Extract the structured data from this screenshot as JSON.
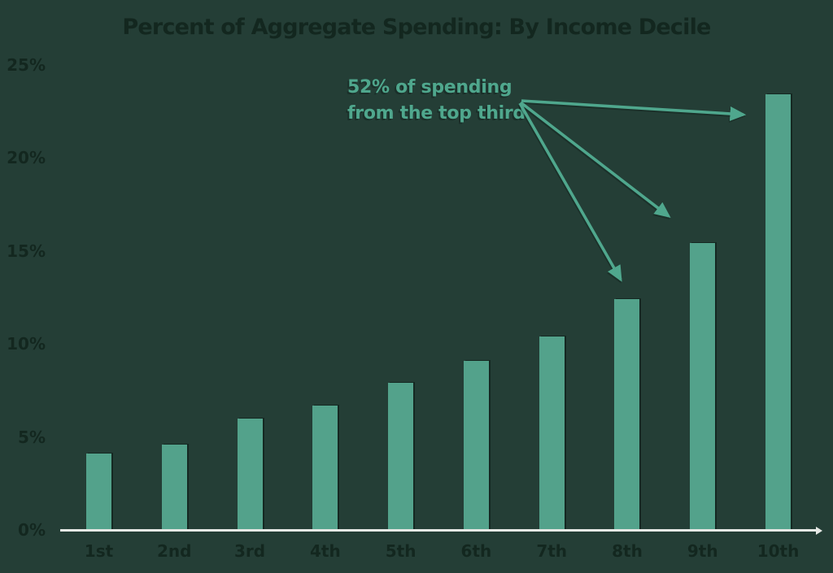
{
  "title": "Percent of Aggregate Spending: By Income Decile",
  "annotation": {
    "line1": "52% of spending",
    "line2": "from the top third",
    "targets": [
      "8th",
      "9th",
      "10th"
    ]
  },
  "chart_data": {
    "type": "bar",
    "title": "Percent of Aggregate Spending: By Income Decile",
    "categories": [
      "1st",
      "2nd",
      "3rd",
      "4th",
      "5th",
      "6th",
      "7th",
      "8th",
      "9th",
      "10th"
    ],
    "values": [
      4.1,
      4.6,
      6.0,
      6.7,
      7.9,
      9.1,
      10.4,
      12.4,
      15.4,
      23.4
    ],
    "xlabel": "",
    "ylabel": "",
    "ylim": [
      0,
      25
    ],
    "yticks": [
      0,
      5,
      10,
      15,
      20,
      25
    ],
    "ytick_labels": [
      "0%",
      "5%",
      "10%",
      "15%",
      "20%",
      "25%"
    ],
    "grid": false,
    "legend": "none",
    "annotation_text": "52% of spending from the top third",
    "annotation_arrow_targets": [
      "8th",
      "9th",
      "10th"
    ]
  },
  "colors": {
    "background": "#243E36",
    "bar": "#53A28B",
    "ink": "#13271F",
    "teal": "#4FA78D",
    "axis_line": "#E6E9E6"
  }
}
